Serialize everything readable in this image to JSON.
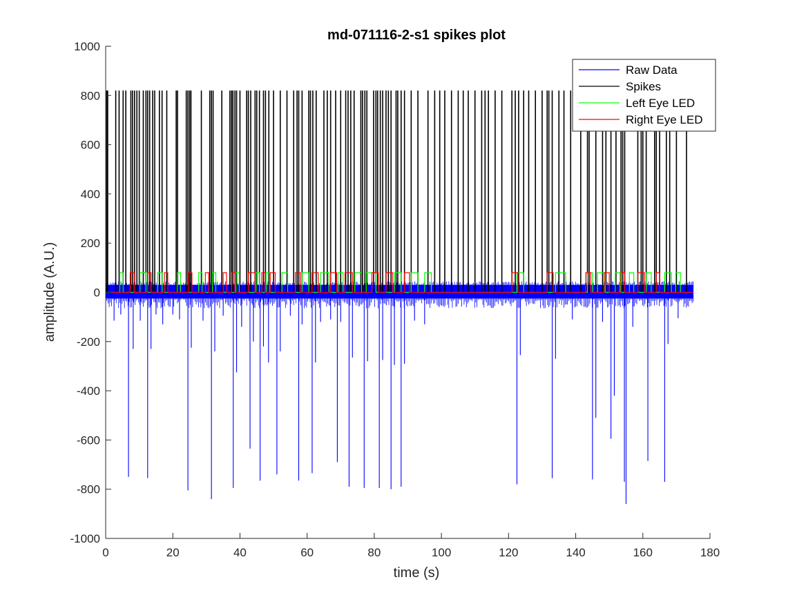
{
  "chart_data": {
    "type": "line",
    "title": "md-071116-2-s1 spikes plot",
    "xlabel": "time (s)",
    "ylabel": "amplitude (A.U.)",
    "xlim": [
      0,
      180
    ],
    "ylim": [
      -1000,
      1000
    ],
    "xticks": [
      "0",
      "20",
      "40",
      "60",
      "80",
      "100",
      "120",
      "140",
      "160",
      "180"
    ],
    "yticks": [
      "1000",
      "800",
      "600",
      "400",
      "200",
      "0",
      "-200",
      "-400",
      "-600",
      "-800",
      "-1000"
    ],
    "grid": false,
    "legend_position": "top-right",
    "colors": {
      "raw": "#0000ff",
      "spikes": "#000000",
      "left_led": "#00ff00",
      "right_led": "#ff0000"
    },
    "series": [
      {
        "name": "Raw Data",
        "noise_band": [
          -25,
          30
        ],
        "x_range": [
          0,
          175
        ],
        "negative_events": [
          {
            "x": 2.5,
            "y": -115
          },
          {
            "x": 4.5,
            "y": -90
          },
          {
            "x": 6.8,
            "y": -750
          },
          {
            "x": 8.2,
            "y": -230
          },
          {
            "x": 10.3,
            "y": -115
          },
          {
            "x": 12.5,
            "y": -755
          },
          {
            "x": 13.5,
            "y": -230
          },
          {
            "x": 15.0,
            "y": -90
          },
          {
            "x": 17.0,
            "y": -130
          },
          {
            "x": 20.0,
            "y": -90
          },
          {
            "x": 22.0,
            "y": -110
          },
          {
            "x": 24.5,
            "y": -805
          },
          {
            "x": 25.5,
            "y": -225
          },
          {
            "x": 29.0,
            "y": -115
          },
          {
            "x": 31.5,
            "y": -840
          },
          {
            "x": 32.5,
            "y": -240
          },
          {
            "x": 35.0,
            "y": -95
          },
          {
            "x": 38.0,
            "y": -795
          },
          {
            "x": 39.0,
            "y": -325
          },
          {
            "x": 40.5,
            "y": -140
          },
          {
            "x": 43.0,
            "y": -635
          },
          {
            "x": 44.0,
            "y": -200
          },
          {
            "x": 46.0,
            "y": -765
          },
          {
            "x": 47.0,
            "y": -220
          },
          {
            "x": 48.5,
            "y": -285
          },
          {
            "x": 51.0,
            "y": -740
          },
          {
            "x": 52.0,
            "y": -240
          },
          {
            "x": 55.0,
            "y": -95
          },
          {
            "x": 57.5,
            "y": -765
          },
          {
            "x": 58.5,
            "y": -130
          },
          {
            "x": 61.5,
            "y": -735
          },
          {
            "x": 62.5,
            "y": -285
          },
          {
            "x": 64.0,
            "y": -120
          },
          {
            "x": 67.0,
            "y": -110
          },
          {
            "x": 69.0,
            "y": -690
          },
          {
            "x": 70.0,
            "y": -120
          },
          {
            "x": 72.5,
            "y": -790
          },
          {
            "x": 73.5,
            "y": -265
          },
          {
            "x": 77.0,
            "y": -795
          },
          {
            "x": 78.0,
            "y": -280
          },
          {
            "x": 81.5,
            "y": -795
          },
          {
            "x": 82.5,
            "y": -275
          },
          {
            "x": 85.0,
            "y": -800
          },
          {
            "x": 86.0,
            "y": -295
          },
          {
            "x": 88.0,
            "y": -790
          },
          {
            "x": 89.0,
            "y": -290
          },
          {
            "x": 92.0,
            "y": -115
          },
          {
            "x": 95.0,
            "y": -130
          },
          {
            "x": 122.5,
            "y": -780
          },
          {
            "x": 123.5,
            "y": -255
          },
          {
            "x": 133.0,
            "y": -755
          },
          {
            "x": 134.0,
            "y": -270
          },
          {
            "x": 139.0,
            "y": -110
          },
          {
            "x": 145.0,
            "y": -760
          },
          {
            "x": 146.0,
            "y": -510
          },
          {
            "x": 148.0,
            "y": -120
          },
          {
            "x": 150.5,
            "y": -595
          },
          {
            "x": 151.5,
            "y": -420
          },
          {
            "x": 154.5,
            "y": -770
          },
          {
            "x": 155.0,
            "y": -860
          },
          {
            "x": 157.0,
            "y": -140
          },
          {
            "x": 161.5,
            "y": -685
          },
          {
            "x": 166.5,
            "y": -770
          },
          {
            "x": 167.5,
            "y": -210
          },
          {
            "x": 170.5,
            "y": -105
          }
        ]
      },
      {
        "name": "Spikes",
        "height": 820,
        "times": [
          0.3,
          0.6,
          3.0,
          4.0,
          5.2,
          6.0,
          7.5,
          8.0,
          8.6,
          9.3,
          10.0,
          11.2,
          12.0,
          12.5,
          13.1,
          14.0,
          14.6,
          16.0,
          16.8,
          18.2,
          21.0,
          21.4,
          24.0,
          24.5,
          25.0,
          25.4,
          28.5,
          31.0,
          31.5,
          32.0,
          34.6,
          37.0,
          37.5,
          37.9,
          38.5,
          39.0,
          40.0,
          42.0,
          42.5,
          43.2,
          44.5,
          45.0,
          45.8,
          47.0,
          47.6,
          48.6,
          50.0,
          52.0,
          54.0,
          56.0,
          57.0,
          57.5,
          58.5,
          60.5,
          61.0,
          61.7,
          62.7,
          65.0,
          66.0,
          67.0,
          68.5,
          70.0,
          71.5,
          72.2,
          73.0,
          74.0,
          76.0,
          76.5,
          77.2,
          77.8,
          79.8,
          80.5,
          81.0,
          81.8,
          82.5,
          83.5,
          84.2,
          85.0,
          86.5,
          87.0,
          88.0,
          89.0,
          91.0,
          93.0,
          96.0,
          98.0,
          99.5,
          101.0,
          103.0,
          105.0,
          106.5,
          108.0,
          110.0,
          112.0,
          113.0,
          114.0,
          116.0,
          118.0,
          121.0,
          122.0,
          123.0,
          124.5,
          126.0,
          128.0,
          130.0,
          131.5,
          132.0,
          133.0,
          135.0,
          136.5,
          138.5,
          141.5,
          143.5,
          144.0,
          146.0,
          148.0,
          149.0,
          150.5,
          152.0,
          153.5,
          154.0,
          154.6,
          158.5,
          159.5,
          160.0,
          161.0,
          163.5,
          164.0,
          165.0,
          167.0,
          168.0,
          170.0,
          173.0
        ]
      },
      {
        "name": "Left Eye LED",
        "level": 80,
        "pulses": [
          [
            4.2,
            5.2
          ],
          [
            10.2,
            12.0
          ],
          [
            15.5,
            16.8
          ],
          [
            21.3,
            22.3
          ],
          [
            27.7,
            28.7
          ],
          [
            31.8,
            32.8
          ],
          [
            38.8,
            39.8
          ],
          [
            44.8,
            45.8
          ],
          [
            47.8,
            48.8
          ],
          [
            52.5,
            54.2
          ],
          [
            58.5,
            60.5
          ],
          [
            64.0,
            66.5
          ],
          [
            69.2,
            70.7
          ],
          [
            74.2,
            76.2
          ],
          [
            77.6,
            80.5
          ],
          [
            86.0,
            88.0
          ],
          [
            91.0,
            93.0
          ],
          [
            95.0,
            97.0
          ],
          [
            122.5,
            124.5
          ],
          [
            134.0,
            137.0
          ],
          [
            143.5,
            145.0
          ],
          [
            146.5,
            148.8
          ],
          [
            151.8,
            153.2
          ],
          [
            156.0,
            157.3
          ],
          [
            161.0,
            162.5
          ],
          [
            166.5,
            168.5
          ],
          [
            169.8,
            171.2
          ]
        ]
      },
      {
        "name": "Right Eye LED",
        "level": 80,
        "pulses": [
          [
            7.3,
            8.5
          ],
          [
            12.5,
            13.5
          ],
          [
            17.5,
            18.5
          ],
          [
            24.7,
            25.7
          ],
          [
            29.7,
            30.7
          ],
          [
            35.0,
            36.0
          ],
          [
            37.5,
            38.5
          ],
          [
            42.5,
            44.5
          ],
          [
            46.5,
            47.5
          ],
          [
            49.0,
            50.5
          ],
          [
            56.5,
            58.0
          ],
          [
            61.5,
            63.3
          ],
          [
            67.0,
            68.8
          ],
          [
            71.3,
            73.5
          ],
          [
            79.3,
            81.2
          ],
          [
            83.5,
            85.5
          ],
          [
            89.0,
            90.5
          ],
          [
            121.0,
            122.8
          ],
          [
            131.5,
            133.3
          ],
          [
            143.0,
            144.5
          ],
          [
            148.5,
            150.0
          ],
          [
            153.5,
            154.6
          ],
          [
            158.5,
            160.5
          ],
          [
            164.0,
            165.0
          ]
        ]
      }
    ]
  }
}
